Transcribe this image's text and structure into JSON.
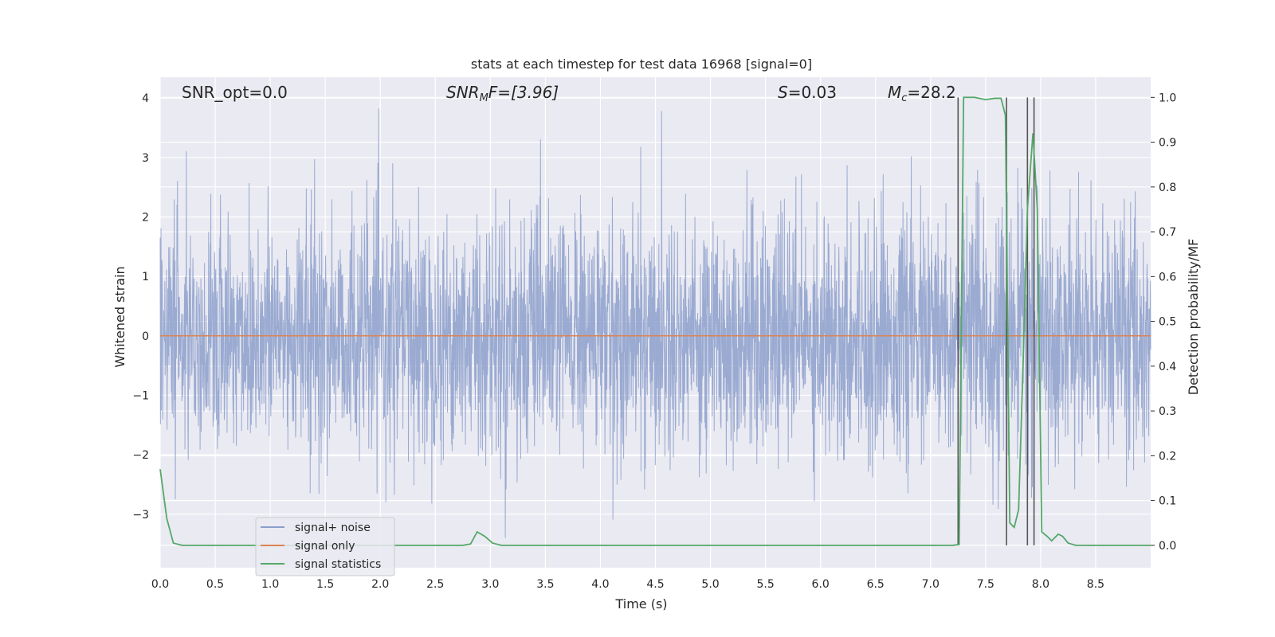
{
  "chart_data": {
    "type": "line",
    "title": "stats at each timestep for test data 16968 [signal=0]",
    "xlabel": "Time (s)",
    "ylabel_left": "Whitened strain",
    "ylabel_right": "Detection probability/MF",
    "xlim": [
      0.0,
      9.0
    ],
    "ylim_left": [
      -3.9,
      4.35
    ],
    "ylim_right": [
      -0.05,
      1.045
    ],
    "xticks": [
      "0.0",
      "0.5",
      "1.0",
      "1.5",
      "2.0",
      "2.5",
      "3.0",
      "3.5",
      "4.0",
      "4.5",
      "5.0",
      "5.5",
      "6.0",
      "6.5",
      "7.0",
      "7.5",
      "8.0",
      "8.5"
    ],
    "yticks_left": [
      "4",
      "3",
      "2",
      "1",
      "0",
      "−1",
      "−2",
      "−3"
    ],
    "yticks_right": [
      "1.0",
      "0.9",
      "0.8",
      "0.7",
      "0.6",
      "0.5",
      "0.4",
      "0.3",
      "0.2",
      "0.1",
      "0.0"
    ],
    "grid": true,
    "legend_placement": "lower-left",
    "annotations": {
      "snr_opt": "SNR_opt=0.0",
      "snr_mf_label": "SNR",
      "snr_mf_sub": "M",
      "snr_mf_rest": "F=[3.96]",
      "s_label": "S",
      "s_rest": "=0.03",
      "mc_label": "M",
      "mc_sub": "c",
      "mc_rest": "=28.2"
    },
    "series": [
      {
        "name": "signal+ noise",
        "color": "#8c9fcb",
        "axis": "left",
        "noise_range": [
          -3.6,
          4.0
        ]
      },
      {
        "name": "signal only",
        "color": "#dd8452",
        "axis": "left",
        "x": [
          0.0,
          9.0
        ],
        "y": [
          0.0,
          0.0
        ]
      },
      {
        "name": "signal statistics",
        "color": "#55a868",
        "axis": "right",
        "x": [
          0.0,
          0.06,
          0.12,
          0.2,
          0.5,
          1.0,
          1.5,
          2.0,
          2.5,
          2.75,
          2.82,
          2.88,
          2.95,
          3.02,
          3.1,
          3.5,
          4.0,
          5.0,
          6.0,
          7.0,
          7.2,
          7.26,
          7.3,
          7.4,
          7.5,
          7.58,
          7.64,
          7.68,
          7.72,
          7.76,
          7.8,
          7.84,
          7.88,
          7.93,
          7.97,
          8.01,
          8.06,
          8.1,
          8.16,
          8.2,
          8.25,
          8.32,
          8.4,
          8.6,
          9.0
        ],
        "y": [
          0.17,
          0.06,
          0.005,
          0.0,
          0.0,
          0.0,
          0.0,
          0.0,
          0.0,
          0.0,
          0.003,
          0.03,
          0.02,
          0.005,
          0.0,
          0.0,
          0.0,
          0.0,
          0.0,
          0.0,
          0.0,
          0.002,
          1.0,
          1.0,
          0.995,
          0.998,
          0.998,
          0.96,
          0.05,
          0.04,
          0.08,
          0.4,
          0.75,
          0.92,
          0.75,
          0.03,
          0.02,
          0.01,
          0.025,
          0.02,
          0.005,
          0.0,
          0.0,
          0.0,
          0.0
        ]
      }
    ],
    "vertical_lines_x": [
      7.25,
      7.69,
      7.88,
      7.94
    ]
  },
  "legend": {
    "items": [
      {
        "label": "signal+ noise",
        "color": "#8c9fcb"
      },
      {
        "label": "signal only",
        "color": "#dd8452"
      },
      {
        "label": "signal statistics",
        "color": "#55a868"
      }
    ]
  },
  "colors": {
    "plot_background": "#eaeaf2",
    "grid": "#ffffff",
    "vertical_line": "#555555"
  }
}
